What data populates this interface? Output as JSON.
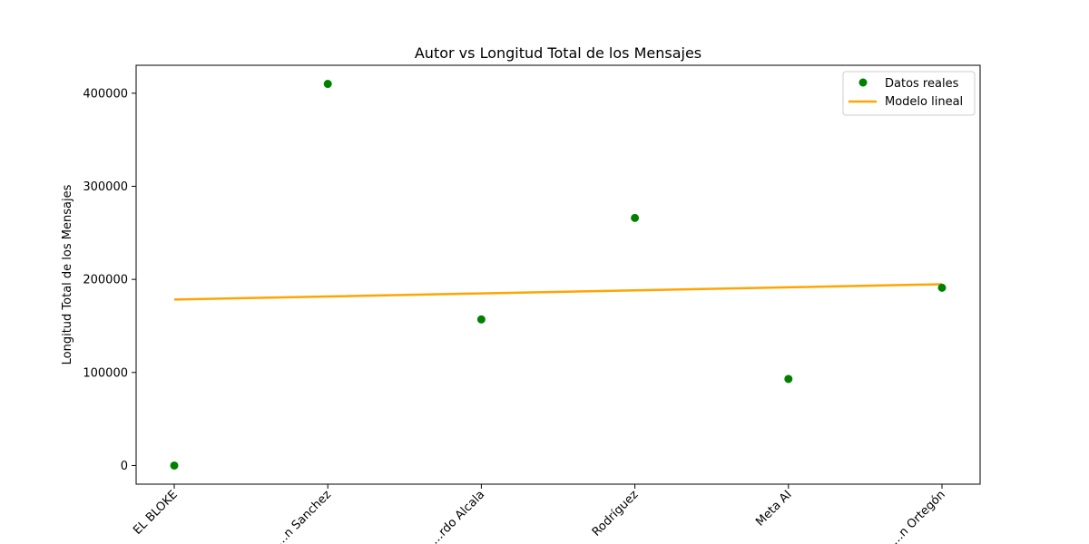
{
  "chart_data": {
    "type": "scatter",
    "title": "Autor vs Longitud Total de los Mensajes",
    "xlabel": "",
    "ylabel": "Longitud Total de los Mensajes",
    "categories": [
      "EL BLOKE",
      "…n Sanchez",
      "…rdo Alcala",
      "Rodríguez",
      "Meta AI",
      "…n Ortegón"
    ],
    "series": [
      {
        "name": "Datos reales",
        "kind": "scatter",
        "color": "#008000",
        "values": [
          0,
          410000,
          157000,
          266000,
          93000,
          191000
        ]
      },
      {
        "name": "Modelo lineal",
        "kind": "line",
        "color": "#ffa500",
        "values": [
          178300,
          181600,
          184900,
          188200,
          191500,
          194800
        ]
      }
    ],
    "ylim": [
      -20000,
      430000
    ],
    "yticks": [
      0,
      100000,
      200000,
      300000,
      400000
    ],
    "ytick_labels": [
      "0",
      "100000",
      "200000",
      "300000",
      "400000"
    ],
    "grid": false,
    "legend_position": "top-right"
  }
}
